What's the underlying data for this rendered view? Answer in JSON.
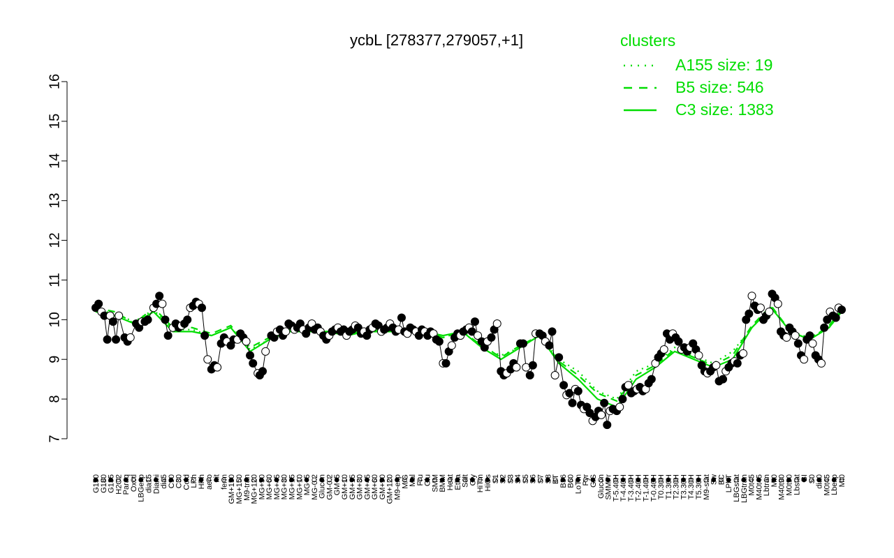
{
  "chart_data": {
    "type": "line",
    "title": "ycbL [278377,279057,+1]",
    "xlabel": "",
    "ylabel": "",
    "ylim": [
      7,
      16
    ],
    "yticks": [
      7,
      8,
      9,
      10,
      11,
      12,
      13,
      14,
      15,
      16
    ],
    "grid": false,
    "legend": {
      "title": "clusters",
      "placement": "top-right",
      "entries": [
        {
          "label": "A155 size: 19",
          "style": "dotted"
        },
        {
          "label": "B5 size: 546",
          "style": "dashed"
        },
        {
          "label": "C3 size: 1383",
          "style": "solid"
        }
      ]
    },
    "colors": {
      "cluster": "#00dd00",
      "points": "#000000",
      "axis": "#000000"
    },
    "x_labels": [
      "G150",
      "G180",
      "G135",
      "H2O2",
      "Paraq",
      "Oxctl",
      "LBGexp",
      "dia15",
      "Diami",
      "dia5",
      "C90",
      "C30",
      "Cold",
      "LPh",
      "HPh",
      "aero",
      "nit",
      "ferm",
      "GM+150",
      "MG+150",
      "M9-tran",
      "MG+120",
      "MG+90",
      "MG+60",
      "MG+45",
      "MG+30",
      "MG+15",
      "MG+10",
      "MG+5",
      "MG-0.2",
      "Glucon",
      "GM-0.2",
      "GM+5",
      "GM+10",
      "GM+15",
      "GM+30",
      "GM+45",
      "GM+60",
      "GM+90",
      "GM+120",
      "M9-exp",
      "M/G",
      "Mal",
      "Fru",
      "Glu",
      "SMM",
      "BMM",
      "Heat",
      "Etha",
      "Salt",
      "Gly",
      "HiTm",
      "HiOs",
      "S1",
      "S2",
      "S3",
      "S4",
      "S5",
      "S6",
      "S7",
      "S8",
      "BT",
      "B36",
      "B60",
      "LoTm",
      "Pyr",
      "G/S",
      "Glucon",
      "SMMPr",
      "T-5.40H",
      "T-4.40H",
      "T-3.40H",
      "T-2.40H",
      "T-1.40H",
      "T-0.40H",
      "T0.30H",
      "T1.30H",
      "T2.30H",
      "T3.30H",
      "T4.30H",
      "T5.30H",
      "M9-stat",
      "Sw",
      "BC",
      "LPhT",
      "LBGstat",
      "LBGtran",
      "M0t45",
      "M40t45",
      "Lbtran",
      "Mt0",
      "M40t90",
      "M0t90",
      "Lbstat",
      "BI",
      "S0",
      "dia0",
      "M0t45",
      "Lbexp",
      "Mt0"
    ],
    "points": [
      [
        0.0,
        10.3
      ],
      [
        0.3,
        10.4
      ],
      [
        0.6,
        10.2
      ],
      [
        0.9,
        10.1
      ],
      [
        1.2,
        9.5
      ],
      [
        1.5,
        10.1
      ],
      [
        1.8,
        9.95
      ],
      [
        2.1,
        9.5
      ],
      [
        2.4,
        10.1
      ],
      [
        3.0,
        9.55
      ],
      [
        3.3,
        9.45
      ],
      [
        3.6,
        9.55
      ],
      [
        4.2,
        9.9
      ],
      [
        4.5,
        9.8
      ],
      [
        4.8,
        9.95
      ],
      [
        5.1,
        9.95
      ],
      [
        5.4,
        10.0
      ],
      [
        6.0,
        10.3
      ],
      [
        6.3,
        10.4
      ],
      [
        6.6,
        10.6
      ],
      [
        6.9,
        10.4
      ],
      [
        7.2,
        10.0
      ],
      [
        7.5,
        9.6
      ],
      [
        8.0,
        9.8
      ],
      [
        8.3,
        9.9
      ],
      [
        8.6,
        9.8
      ],
      [
        8.9,
        9.85
      ],
      [
        9.2,
        9.9
      ],
      [
        9.5,
        10.0
      ],
      [
        9.8,
        10.3
      ],
      [
        10.1,
        10.35
      ],
      [
        10.4,
        10.45
      ],
      [
        10.7,
        10.4
      ],
      [
        11.0,
        10.3
      ],
      [
        11.3,
        9.6
      ],
      [
        11.6,
        9.0
      ],
      [
        12.0,
        8.75
      ],
      [
        12.3,
        8.85
      ],
      [
        12.6,
        8.8
      ],
      [
        13.0,
        9.4
      ],
      [
        13.3,
        9.55
      ],
      [
        13.6,
        9.45
      ],
      [
        14.0,
        9.35
      ],
      [
        14.3,
        9.5
      ],
      [
        14.7,
        9.5
      ],
      [
        15.0,
        9.65
      ],
      [
        15.3,
        9.55
      ],
      [
        15.6,
        9.45
      ],
      [
        16.0,
        9.1
      ],
      [
        16.3,
        8.9
      ],
      [
        16.8,
        8.65
      ],
      [
        17.0,
        8.6
      ],
      [
        17.3,
        8.7
      ],
      [
        17.6,
        9.2
      ],
      [
        18.2,
        9.6
      ],
      [
        18.5,
        9.55
      ],
      [
        18.8,
        9.7
      ],
      [
        19.1,
        9.75
      ],
      [
        19.4,
        9.6
      ],
      [
        19.7,
        9.7
      ],
      [
        20.0,
        9.9
      ],
      [
        20.3,
        9.85
      ],
      [
        20.6,
        9.75
      ],
      [
        20.9,
        9.8
      ],
      [
        21.2,
        9.9
      ],
      [
        21.5,
        9.75
      ],
      [
        21.8,
        9.65
      ],
      [
        22.1,
        9.8
      ],
      [
        22.4,
        9.9
      ],
      [
        22.7,
        9.75
      ],
      [
        23.0,
        9.8
      ],
      [
        23.3,
        9.7
      ],
      [
        23.6,
        9.6
      ],
      [
        23.9,
        9.5
      ],
      [
        24.2,
        9.6
      ],
      [
        24.5,
        9.7
      ],
      [
        24.8,
        9.75
      ],
      [
        25.1,
        9.8
      ],
      [
        25.4,
        9.7
      ],
      [
        25.7,
        9.75
      ],
      [
        26.0,
        9.6
      ],
      [
        26.3,
        9.7
      ],
      [
        26.6,
        9.75
      ],
      [
        26.9,
        9.85
      ],
      [
        27.2,
        9.8
      ],
      [
        27.5,
        9.65
      ],
      [
        27.8,
        9.7
      ],
      [
        28.1,
        9.6
      ],
      [
        28.4,
        9.75
      ],
      [
        28.7,
        9.8
      ],
      [
        29.0,
        9.9
      ],
      [
        29.3,
        9.85
      ],
      [
        29.6,
        9.7
      ],
      [
        29.9,
        9.75
      ],
      [
        30.2,
        9.8
      ],
      [
        30.5,
        9.9
      ],
      [
        30.8,
        9.8
      ],
      [
        31.1,
        9.7
      ],
      [
        31.4,
        9.75
      ],
      [
        31.7,
        10.05
      ],
      [
        32.0,
        9.7
      ],
      [
        32.3,
        9.65
      ],
      [
        32.6,
        9.8
      ],
      [
        32.9,
        9.75
      ],
      [
        33.2,
        9.7
      ],
      [
        33.5,
        9.6
      ],
      [
        33.8,
        9.75
      ],
      [
        34.1,
        9.7
      ],
      [
        34.4,
        9.6
      ],
      [
        34.7,
        9.7
      ],
      [
        35.0,
        9.65
      ],
      [
        35.3,
        9.5
      ],
      [
        35.6,
        9.45
      ],
      [
        36.0,
        8.9
      ],
      [
        36.3,
        8.9
      ],
      [
        36.6,
        9.2
      ],
      [
        36.9,
        9.35
      ],
      [
        37.2,
        9.55
      ],
      [
        37.5,
        9.65
      ],
      [
        37.8,
        9.6
      ],
      [
        38.1,
        9.7
      ],
      [
        38.4,
        9.75
      ],
      [
        38.7,
        9.8
      ],
      [
        39.0,
        9.7
      ],
      [
        39.3,
        9.95
      ],
      [
        39.6,
        9.6
      ],
      [
        40.0,
        9.45
      ],
      [
        40.3,
        9.3
      ],
      [
        40.6,
        9.45
      ],
      [
        41.0,
        9.55
      ],
      [
        41.3,
        9.75
      ],
      [
        41.6,
        9.9
      ],
      [
        42.0,
        8.7
      ],
      [
        42.3,
        8.6
      ],
      [
        42.6,
        8.65
      ],
      [
        43.0,
        8.75
      ],
      [
        43.3,
        8.9
      ],
      [
        43.6,
        8.8
      ],
      [
        44.0,
        9.4
      ],
      [
        44.3,
        9.4
      ],
      [
        44.6,
        8.8
      ],
      [
        45.0,
        8.6
      ],
      [
        45.3,
        8.85
      ],
      [
        45.6,
        9.65
      ],
      [
        46.0,
        9.65
      ],
      [
        46.3,
        9.6
      ],
      [
        46.6,
        9.45
      ],
      [
        47.0,
        9.35
      ],
      [
        47.3,
        9.7
      ],
      [
        47.6,
        8.6
      ],
      [
        48.0,
        9.05
      ],
      [
        48.5,
        8.35
      ],
      [
        48.8,
        8.1
      ],
      [
        49.1,
        8.15
      ],
      [
        49.4,
        7.9
      ],
      [
        49.7,
        8.25
      ],
      [
        50.0,
        8.2
      ],
      [
        50.3,
        7.85
      ],
      [
        50.6,
        7.75
      ],
      [
        50.9,
        7.8
      ],
      [
        51.2,
        7.65
      ],
      [
        51.5,
        7.45
      ],
      [
        51.8,
        7.55
      ],
      [
        52.1,
        7.7
      ],
      [
        52.4,
        7.6
      ],
      [
        52.7,
        7.9
      ],
      [
        53.0,
        7.35
      ],
      [
        53.3,
        7.7
      ],
      [
        53.6,
        7.75
      ],
      [
        54.0,
        7.7
      ],
      [
        54.3,
        7.8
      ],
      [
        54.6,
        8.0
      ],
      [
        54.9,
        8.3
      ],
      [
        55.2,
        8.35
      ],
      [
        55.5,
        8.15
      ],
      [
        55.8,
        8.2
      ],
      [
        56.1,
        8.25
      ],
      [
        56.4,
        8.3
      ],
      [
        56.7,
        8.2
      ],
      [
        57.0,
        8.25
      ],
      [
        57.3,
        8.4
      ],
      [
        57.6,
        8.5
      ],
      [
        58.0,
        8.9
      ],
      [
        58.3,
        9.05
      ],
      [
        58.6,
        9.15
      ],
      [
        58.9,
        9.25
      ],
      [
        59.2,
        9.65
      ],
      [
        59.5,
        9.5
      ],
      [
        59.8,
        9.65
      ],
      [
        60.1,
        9.55
      ],
      [
        60.4,
        9.45
      ],
      [
        60.7,
        9.25
      ],
      [
        61.0,
        9.3
      ],
      [
        61.3,
        9.2
      ],
      [
        61.6,
        9.3
      ],
      [
        61.9,
        9.4
      ],
      [
        62.2,
        9.25
      ],
      [
        62.5,
        9.1
      ],
      [
        62.8,
        8.85
      ],
      [
        63.1,
        8.7
      ],
      [
        63.4,
        8.65
      ],
      [
        63.7,
        8.7
      ],
      [
        64.0,
        8.8
      ],
      [
        64.3,
        8.85
      ],
      [
        64.6,
        8.45
      ],
      [
        65.0,
        8.5
      ],
      [
        65.3,
        8.7
      ],
      [
        65.6,
        8.8
      ],
      [
        65.9,
        8.9
      ],
      [
        66.2,
        8.95
      ],
      [
        66.5,
        8.9
      ],
      [
        66.8,
        9.1
      ],
      [
        67.1,
        9.15
      ],
      [
        67.4,
        10.0
      ],
      [
        67.7,
        10.15
      ],
      [
        68.0,
        10.6
      ],
      [
        68.3,
        10.35
      ],
      [
        68.6,
        10.25
      ],
      [
        68.9,
        10.3
      ],
      [
        69.2,
        10.0
      ],
      [
        69.5,
        10.1
      ],
      [
        69.8,
        10.2
      ],
      [
        70.1,
        10.65
      ],
      [
        70.4,
        10.55
      ],
      [
        70.7,
        10.4
      ],
      [
        71.0,
        9.7
      ],
      [
        71.3,
        9.6
      ],
      [
        71.6,
        9.55
      ],
      [
        71.9,
        9.8
      ],
      [
        72.2,
        9.7
      ],
      [
        72.5,
        9.6
      ],
      [
        72.8,
        9.4
      ],
      [
        73.1,
        9.1
      ],
      [
        73.4,
        9.0
      ],
      [
        73.7,
        9.5
      ],
      [
        74.0,
        9.6
      ],
      [
        74.3,
        9.4
      ],
      [
        74.6,
        9.1
      ],
      [
        74.9,
        9.0
      ],
      [
        75.2,
        8.9
      ],
      [
        75.5,
        9.8
      ],
      [
        75.8,
        10.0
      ],
      [
        76.1,
        10.2
      ],
      [
        76.4,
        10.1
      ],
      [
        76.7,
        10.05
      ],
      [
        77.0,
        10.3
      ],
      [
        77.3,
        10.25
      ]
    ],
    "cluster_lines": [
      {
        "label": "C3 size: 1383",
        "style": "solid",
        "x": [
          0,
          2,
          4,
          6,
          8,
          10,
          12,
          14,
          16,
          18,
          20,
          22,
          24,
          26,
          28,
          30,
          32,
          34,
          36,
          38,
          40,
          42,
          44,
          46,
          48,
          50,
          52,
          54,
          56,
          58,
          60,
          62,
          64,
          66,
          68,
          70,
          72,
          74,
          76,
          77.3
        ],
        "y": [
          10.2,
          10.1,
          9.9,
          10.2,
          9.7,
          9.7,
          9.6,
          9.8,
          9.2,
          9.5,
          9.7,
          9.7,
          9.7,
          9.6,
          9.7,
          9.7,
          9.7,
          9.7,
          9.6,
          9.7,
          9.3,
          9.0,
          9.3,
          9.6,
          8.9,
          8.5,
          8.0,
          7.8,
          8.5,
          8.8,
          9.2,
          9.0,
          8.8,
          9.0,
          9.8,
          10.3,
          9.7,
          9.5,
          9.8,
          10.2
        ]
      },
      {
        "label": "B5 size: 546",
        "style": "dashed",
        "x": [
          0,
          2,
          4,
          6,
          8,
          10,
          12,
          14,
          16,
          18,
          20,
          22,
          24,
          26,
          28,
          30,
          32,
          34,
          36,
          38,
          40,
          42,
          44,
          46,
          48,
          50,
          52,
          54,
          56,
          58,
          60,
          62,
          64,
          66,
          68,
          70,
          72,
          74,
          76,
          77.3
        ],
        "y": [
          10.3,
          10.2,
          9.9,
          10.3,
          9.8,
          9.8,
          9.65,
          9.85,
          9.3,
          9.55,
          9.75,
          9.75,
          9.7,
          9.65,
          9.7,
          9.75,
          9.7,
          9.7,
          9.55,
          9.7,
          9.35,
          9.05,
          9.35,
          9.6,
          8.95,
          8.6,
          8.15,
          7.95,
          8.6,
          8.85,
          9.25,
          9.05,
          8.85,
          9.1,
          9.85,
          10.35,
          9.7,
          9.5,
          9.85,
          10.25
        ]
      },
      {
        "label": "A155 size: 19",
        "style": "dotted",
        "x": [
          0,
          2,
          4,
          6,
          8,
          10,
          12,
          14,
          16,
          18,
          20,
          22,
          24,
          26,
          28,
          30,
          32,
          34,
          36,
          38,
          40,
          42,
          44,
          46,
          48,
          50,
          52,
          54,
          56,
          58,
          60,
          62,
          64,
          66,
          68,
          70,
          72,
          74,
          76,
          77.3
        ],
        "y": [
          10.25,
          10.15,
          9.95,
          10.25,
          9.75,
          9.75,
          9.6,
          9.8,
          9.25,
          9.5,
          9.7,
          9.7,
          9.7,
          9.6,
          9.75,
          9.7,
          9.7,
          9.7,
          9.55,
          9.7,
          9.3,
          9.1,
          9.3,
          9.6,
          9.0,
          8.7,
          8.2,
          8.0,
          8.7,
          8.9,
          9.3,
          9.1,
          8.9,
          9.2,
          9.8,
          10.3,
          9.7,
          9.55,
          9.8,
          10.2
        ]
      }
    ]
  }
}
